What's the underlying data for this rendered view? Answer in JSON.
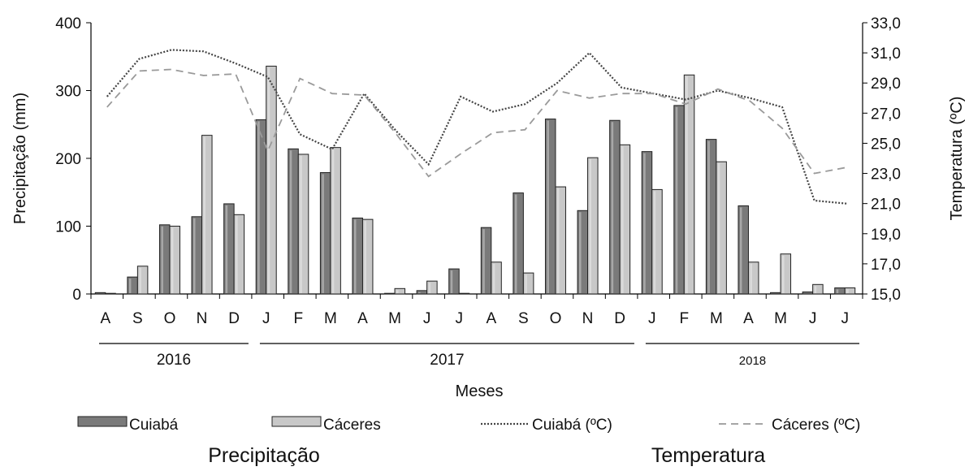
{
  "chart_data": {
    "type": "bar",
    "categories": [
      "A",
      "S",
      "O",
      "N",
      "D",
      "J",
      "F",
      "M",
      "A",
      "M",
      "J",
      "J",
      "A",
      "S",
      "O",
      "N",
      "D",
      "J",
      "F",
      "M",
      "A",
      "M",
      "J",
      "J"
    ],
    "series": [
      {
        "name": "Cuiabá",
        "axis": "left",
        "kind": "bar",
        "color": "#7a7a7a",
        "values": [
          2,
          25,
          102,
          114,
          133,
          257,
          214,
          179,
          112,
          0,
          5,
          37,
          98,
          149,
          258,
          123,
          256,
          210,
          278,
          228,
          130,
          2,
          3,
          9
        ]
      },
      {
        "name": "Cáceres",
        "axis": "left",
        "kind": "bar",
        "color": "#c8c8c8",
        "values": [
          0,
          41,
          100,
          234,
          117,
          336,
          206,
          216,
          110,
          8,
          19,
          0,
          47,
          31,
          158,
          201,
          220,
          154,
          323,
          195,
          47,
          59,
          14,
          9
        ]
      },
      {
        "name": "Cuiabá (ºC)",
        "axis": "right",
        "kind": "line",
        "style": "dotted",
        "color": "#444444",
        "values": [
          28.1,
          30.6,
          31.2,
          31.1,
          30.3,
          29.4,
          25.6,
          24.6,
          28.3,
          25.8,
          23.6,
          28.1,
          27.1,
          27.6,
          29.0,
          31.0,
          28.7,
          28.3,
          27.9,
          28.5,
          28.0,
          27.4,
          21.2,
          21.0
        ]
      },
      {
        "name": "Cáceres (ºC)",
        "axis": "right",
        "kind": "line",
        "style": "dashed",
        "color": "#9a9a9a",
        "values": [
          27.4,
          29.8,
          29.9,
          29.5,
          29.6,
          24.5,
          29.3,
          28.3,
          28.2,
          25.6,
          22.8,
          24.3,
          25.7,
          25.9,
          28.5,
          28.0,
          28.3,
          28.3,
          27.6,
          28.6,
          27.8,
          26.0,
          23.0,
          23.4
        ]
      }
    ],
    "y_left": {
      "label": "Precipitação  (mm)",
      "ticks": [
        "0",
        "100",
        "200",
        "300",
        "400"
      ],
      "lim": [
        0,
        400
      ]
    },
    "y_right": {
      "label": "Temperatura (ºC)",
      "ticks": [
        "15,0",
        "17,0",
        "19,0",
        "21,0",
        "23,0",
        "25,0",
        "27,0",
        "29,0",
        "31,0",
        "33,0"
      ],
      "lim": [
        15,
        33
      ]
    },
    "xlabel": "Meses",
    "years": [
      {
        "label": "2016",
        "start": 0,
        "end": 4
      },
      {
        "label": "2017",
        "start": 5,
        "end": 16
      },
      {
        "label": "2018",
        "start": 17,
        "end": 23
      }
    ],
    "legend_position": "bottom",
    "grid": false,
    "group_labels": {
      "precip": "Precipitação",
      "temp": "Temperatura"
    }
  }
}
